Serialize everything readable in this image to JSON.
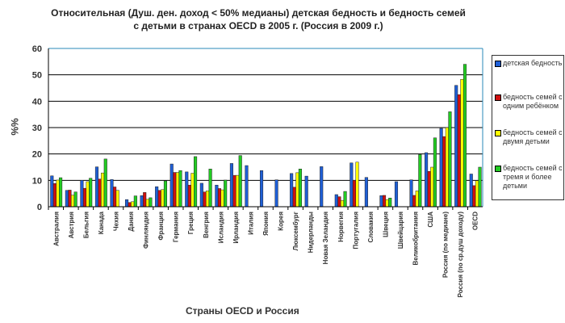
{
  "chart_data": {
    "type": "bar",
    "title": "Относительная  (Душ. ден. доход < 50%  медианы) детская бедность и бедность семей с детьми в странах OECD в 2005 г. (Россия в 2009 г.)",
    "xlabel": "Страны OECD и Россия",
    "ylabel": "%%",
    "ylim": [
      0,
      60
    ],
    "yticks": [
      0,
      10,
      20,
      30,
      40,
      50,
      60
    ],
    "grid": true,
    "legend_position": "right",
    "categories": [
      "Австралия",
      "Австрия",
      "Бельгия",
      "Канада",
      "Чехия",
      "Дания",
      "Финляндия",
      "Франция",
      "Германия",
      "Греция",
      "Венгрия",
      "Исландия",
      "Ирландия",
      "Италия",
      "Япония",
      "Корея",
      "Люксембург",
      "Нидерланды",
      "Новая Зеландия",
      "Норвегия",
      "Португалия",
      "Словакия",
      "Швеция",
      "Швейцария",
      "Великобритания",
      "США",
      "Россия (по медиане)",
      "Россия (по ср.душ доходу)",
      "OECD"
    ],
    "series": [
      {
        "name": "детская бедность",
        "color": "#1f5fd6",
        "values": [
          11.7,
          6.2,
          10.0,
          15.1,
          10.3,
          2.7,
          4.2,
          7.6,
          16.2,
          13.2,
          8.9,
          8.2,
          16.4,
          15.6,
          13.7,
          10.2,
          12.6,
          11.6,
          15.2,
          4.6,
          16.6,
          11.1,
          4.2,
          9.5,
          10.2,
          20.5,
          29.7,
          46.0,
          12.4
        ]
      },
      {
        "name": "бедность семей с одним ребёнком",
        "color": "#d01010",
        "values": [
          8.8,
          6.3,
          7.0,
          10.5,
          7.5,
          1.6,
          5.4,
          6.2,
          13.0,
          8.2,
          5.6,
          6.9,
          11.9,
          null,
          null,
          null,
          7.4,
          null,
          null,
          3.8,
          10.0,
          null,
          4.3,
          null,
          4.3,
          13.4,
          26.6,
          42.5,
          8.0
        ]
      },
      {
        "name": "бедность семей с двумя детьми",
        "color": "#ffff00",
        "values": [
          10.1,
          4.4,
          9.5,
          12.8,
          6.2,
          1.9,
          2.8,
          6.5,
          13.0,
          12.7,
          6.0,
          6.4,
          11.9,
          null,
          null,
          null,
          12.9,
          null,
          null,
          2.4,
          16.9,
          null,
          2.7,
          null,
          6.0,
          15.0,
          30.0,
          48.3,
          9.9
        ]
      },
      {
        "name": "бедность семей с тремя и более детьми",
        "color": "#22cc22",
        "values": [
          11.0,
          5.6,
          10.8,
          18.1,
          null,
          4.1,
          3.4,
          9.8,
          13.7,
          19.0,
          14.3,
          10.1,
          19.4,
          null,
          null,
          null,
          14.3,
          null,
          null,
          5.8,
          null,
          null,
          3.3,
          null,
          19.8,
          26.1,
          36.0,
          54.0,
          15.0
        ]
      }
    ]
  }
}
